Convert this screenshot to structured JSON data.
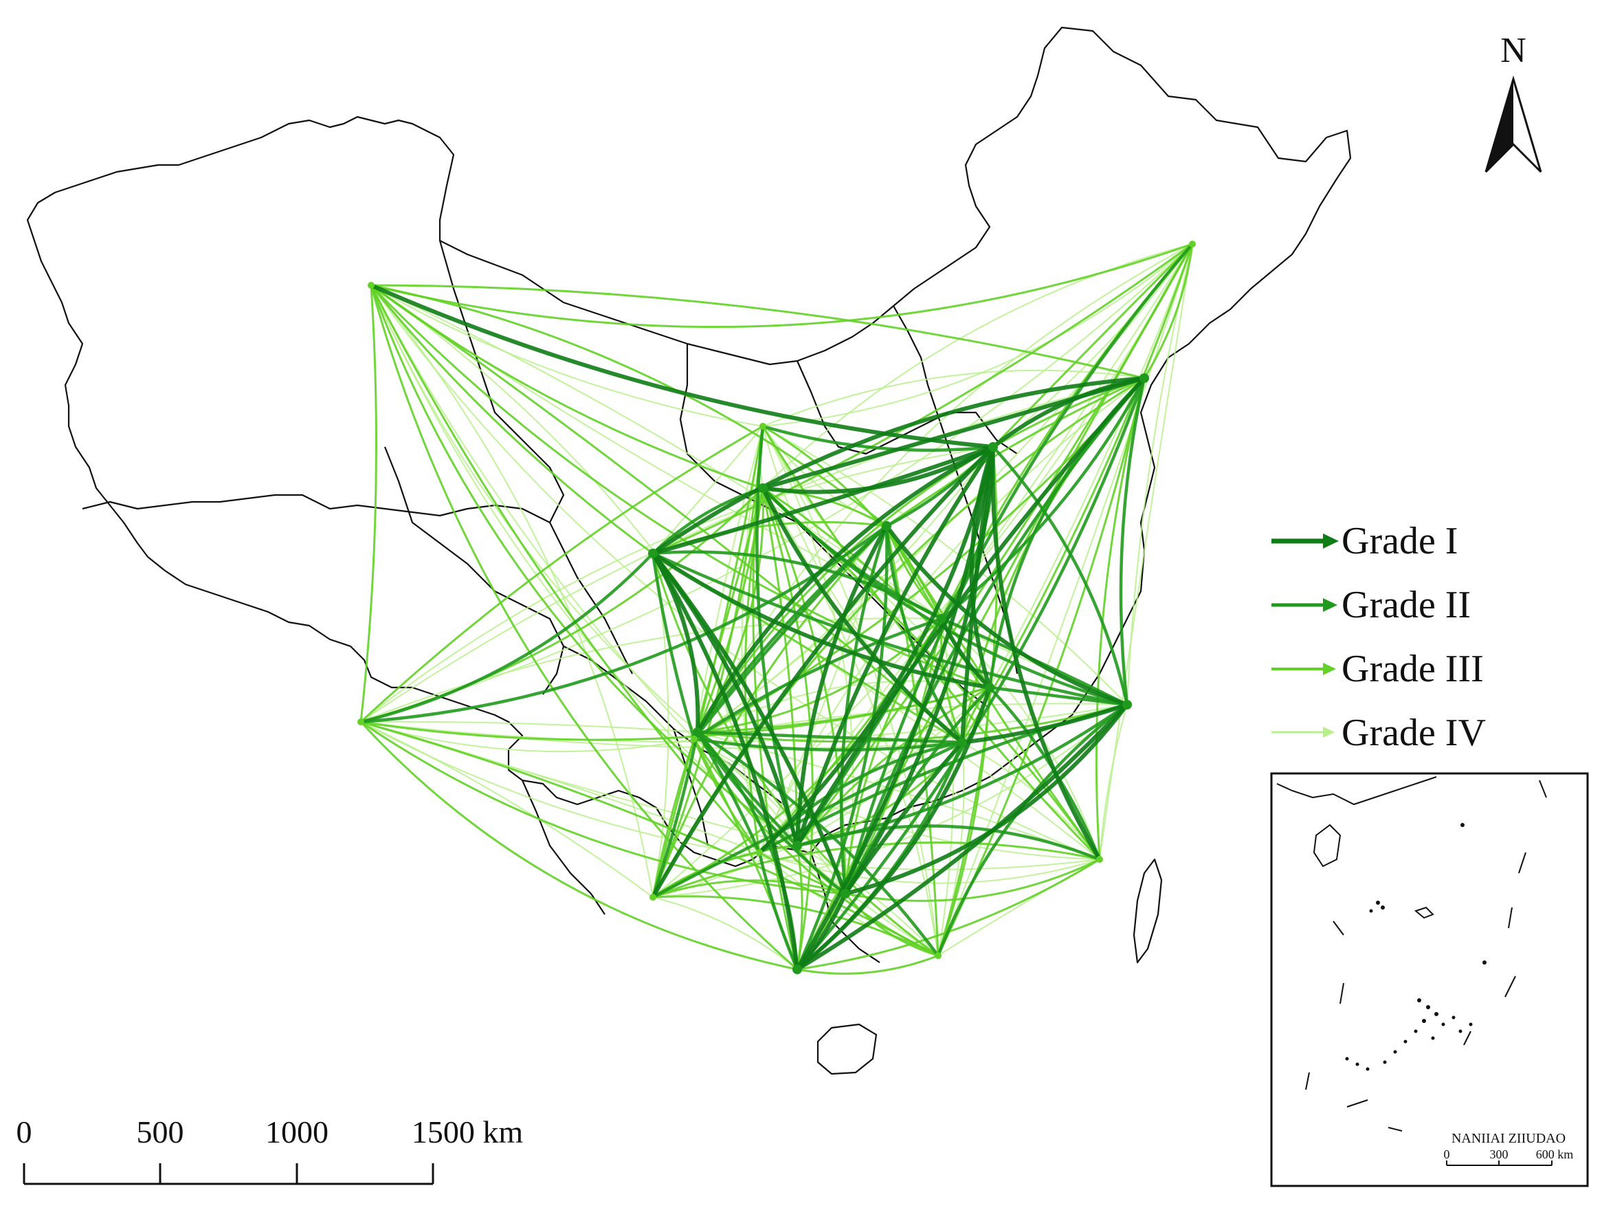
{
  "north_arrow": {
    "label": "N"
  },
  "legend": {
    "items": [
      {
        "label": "Grade I",
        "color": "#0e7d16"
      },
      {
        "label": "Grade II",
        "color": "#1f9a1c"
      },
      {
        "label": "Grade III",
        "color": "#62d226"
      },
      {
        "label": "Grade IV",
        "color": "#b7f08a"
      }
    ]
  },
  "scale_bar": {
    "ticks": [
      "0",
      "500",
      "1000",
      "1500 km"
    ]
  },
  "inset": {
    "title": "NANIIAI ZIIUDAO",
    "ticks": [
      "0",
      "300",
      "600 km"
    ]
  }
}
